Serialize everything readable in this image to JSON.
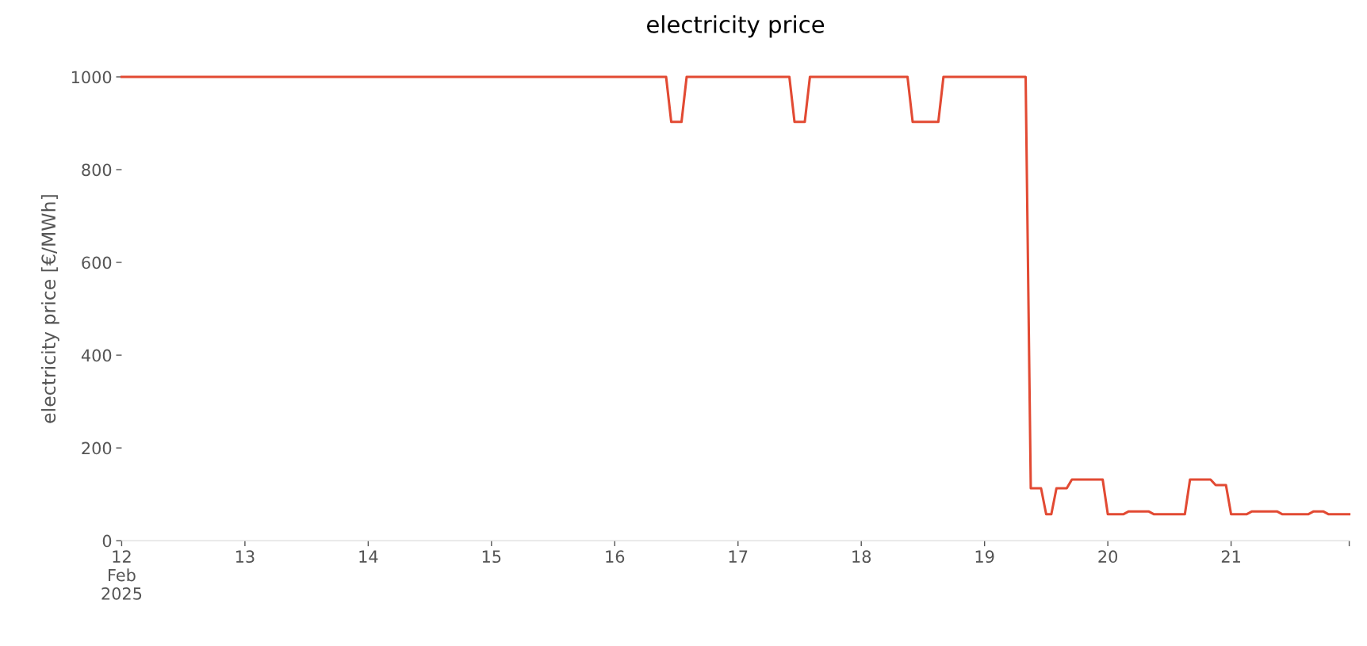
{
  "chart_data": {
    "type": "line",
    "title": "electricity price",
    "ylabel": "electricity price [€/MWh]",
    "x": [
      "2025-02-12T00:00",
      "2025-02-16T10:00",
      "2025-02-16T11:00",
      "2025-02-16T13:00",
      "2025-02-16T14:00",
      "2025-02-17T10:00",
      "2025-02-17T11:00",
      "2025-02-17T13:00",
      "2025-02-17T14:00",
      "2025-02-18T09:00",
      "2025-02-18T10:00",
      "2025-02-18T15:00",
      "2025-02-18T16:00",
      "2025-02-19T08:00",
      "2025-02-19T09:00",
      "2025-02-19T11:00",
      "2025-02-19T12:00",
      "2025-02-19T13:00",
      "2025-02-19T14:00",
      "2025-02-19T16:00",
      "2025-02-19T17:00",
      "2025-02-19T23:00",
      "2025-02-20T00:00",
      "2025-02-20T03:00",
      "2025-02-20T04:00",
      "2025-02-20T08:00",
      "2025-02-20T09:00",
      "2025-02-20T15:00",
      "2025-02-20T16:00",
      "2025-02-20T20:00",
      "2025-02-20T21:00",
      "2025-02-20T23:00",
      "2025-02-21T00:00",
      "2025-02-21T03:00",
      "2025-02-21T04:00",
      "2025-02-21T09:00",
      "2025-02-21T10:00",
      "2025-02-21T15:00",
      "2025-02-21T16:00",
      "2025-02-21T18:00",
      "2025-02-21T19:00",
      "2025-02-21T23:00"
    ],
    "series": [
      {
        "color": "#e24a33",
        "values": [
          1000,
          1000,
          903,
          903,
          1000,
          1000,
          903,
          903,
          1000,
          1000,
          903,
          903,
          1000,
          1000,
          113,
          113,
          57,
          57,
          113,
          113,
          132,
          132,
          57,
          57,
          63,
          63,
          57,
          57,
          132,
          132,
          120,
          120,
          57,
          57,
          63,
          63,
          57,
          57,
          63,
          63,
          57,
          57
        ]
      }
    ],
    "xlim": [
      "2025-02-12T00:00",
      "2025-02-21T23:00"
    ],
    "xticks": [
      {
        "value": "2025-02-12T00:00",
        "label": "12\nFeb\n2025"
      },
      {
        "value": "2025-02-13T00:00",
        "label": "13"
      },
      {
        "value": "2025-02-14T00:00",
        "label": "14"
      },
      {
        "value": "2025-02-15T00:00",
        "label": "15"
      },
      {
        "value": "2025-02-16T00:00",
        "label": "16"
      },
      {
        "value": "2025-02-17T00:00",
        "label": "17"
      },
      {
        "value": "2025-02-18T00:00",
        "label": "18"
      },
      {
        "value": "2025-02-19T00:00",
        "label": "19"
      },
      {
        "value": "2025-02-20T00:00",
        "label": "20"
      },
      {
        "value": "2025-02-21T00:00",
        "label": "21"
      },
      {
        "value": "2025-02-21T23:00",
        "label": null
      }
    ],
    "ylim": [
      0,
      1000
    ],
    "yticks": [
      0,
      200,
      400,
      600,
      800,
      1000
    ],
    "grid": false,
    "line_style": "solid",
    "marker": "none"
  }
}
